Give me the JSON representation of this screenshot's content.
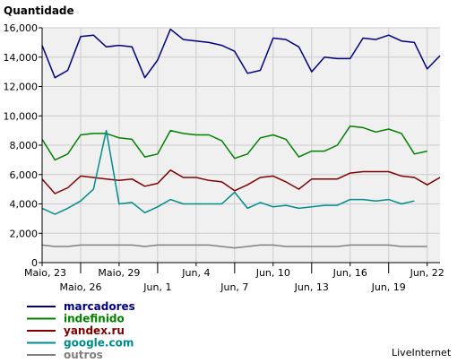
{
  "chart_data": {
    "type": "line",
    "ylabel": "Quantidade",
    "ylim": [
      0,
      16000
    ],
    "yticks": [
      0,
      2000,
      4000,
      6000,
      8000,
      10000,
      12000,
      14000,
      16000
    ],
    "ytick_labels": [
      "0",
      "2,000",
      "4,000",
      "6,000",
      "8,000",
      "10,000",
      "12,000",
      "14,000",
      "16,000"
    ],
    "xticks": [
      {
        "index": 0,
        "label": "Maio, 23",
        "row": 1
      },
      {
        "index": 3,
        "label": "Maio, 26",
        "row": 2
      },
      {
        "index": 6,
        "label": "Maio, 29",
        "row": 1
      },
      {
        "index": 9,
        "label": "Jun, 1",
        "row": 2
      },
      {
        "index": 12,
        "label": "Jun, 4",
        "row": 1
      },
      {
        "index": 15,
        "label": "Jun, 7",
        "row": 2
      },
      {
        "index": 18,
        "label": "Jun, 10",
        "row": 1
      },
      {
        "index": 21,
        "label": "Jun, 13",
        "row": 2
      },
      {
        "index": 24,
        "label": "Jun, 16",
        "row": 1
      },
      {
        "index": 27,
        "label": "Jun, 19",
        "row": 2
      },
      {
        "index": 30,
        "label": "Jun, 22",
        "row": 1
      }
    ],
    "grid": true,
    "legend_position": "bottom-left",
    "series": [
      {
        "name": "marcadores",
        "color": "#000080",
        "values": [
          14800,
          12600,
          13100,
          15400,
          15500,
          14700,
          14800,
          14700,
          12600,
          13800,
          15900,
          15200,
          15100,
          15000,
          14800,
          14400,
          12900,
          13100,
          15300,
          15200,
          14700,
          13000,
          14000,
          13900,
          13900,
          15300,
          15200,
          15500,
          15100,
          15000,
          13200,
          14100
        ]
      },
      {
        "name": "indefinido",
        "color": "#008000",
        "values": [
          8400,
          7000,
          7400,
          8700,
          8800,
          8800,
          8500,
          8400,
          7200,
          7400,
          9000,
          8800,
          8700,
          8700,
          8300,
          7100,
          7400,
          8500,
          8700,
          8400,
          7200,
          7600,
          7600,
          8000,
          9300,
          9200,
          8900,
          9100,
          8800,
          7400,
          7600
        ]
      },
      {
        "name": "yandex.ru",
        "color": "#800000",
        "values": [
          5700,
          4700,
          5100,
          5900,
          5800,
          5700,
          5600,
          5700,
          5200,
          5400,
          6300,
          5800,
          5800,
          5600,
          5500,
          4900,
          5300,
          5800,
          5900,
          5500,
          5000,
          5700,
          5700,
          5700,
          6100,
          6200,
          6200,
          6200,
          5900,
          5800,
          5300,
          5800
        ]
      },
      {
        "name": "google.com",
        "color": "#008B8B",
        "values": [
          3700,
          3300,
          3700,
          4200,
          5000,
          9000,
          4000,
          4100,
          3400,
          3800,
          4300,
          4000,
          4000,
          4000,
          4000,
          4800,
          3700,
          4100,
          3800,
          3900,
          3700,
          3800,
          3900,
          3900,
          4300,
          4300,
          4200,
          4300,
          4000,
          4200
        ]
      },
      {
        "name": "outros",
        "color": "#808080",
        "values": [
          1200,
          1100,
          1100,
          1200,
          1200,
          1200,
          1200,
          1200,
          1100,
          1200,
          1200,
          1200,
          1200,
          1200,
          1100,
          1000,
          1100,
          1200,
          1200,
          1100,
          1100,
          1100,
          1100,
          1100,
          1200,
          1200,
          1200,
          1200,
          1100,
          1100,
          1100
        ]
      }
    ]
  },
  "credit": "LiveInternet"
}
